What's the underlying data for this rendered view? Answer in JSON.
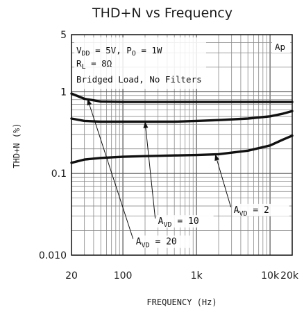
{
  "chart_data": {
    "type": "line",
    "title": "THD+N vs Frequency",
    "xlabel": "FREQUENCY (Hz)",
    "ylabel": "THD+N (%)",
    "x_scale": "log",
    "y_scale": "log",
    "xlim": [
      20,
      20000
    ],
    "ylim": [
      0.01,
      5
    ],
    "x_ticks": [
      {
        "value": 20,
        "label": "20"
      },
      {
        "value": 100,
        "label": "100"
      },
      {
        "value": 1000,
        "label": "1k"
      },
      {
        "value": 10000,
        "label": "10k"
      },
      {
        "value": 20000,
        "label": "20k"
      }
    ],
    "y_ticks": [
      {
        "value": 0.01,
        "label": "0.010"
      },
      {
        "value": 0.1,
        "label": "0.1"
      },
      {
        "value": 1,
        "label": "1"
      },
      {
        "value": 5,
        "label": "5"
      }
    ],
    "grid": true,
    "conditions": {
      "line1": "V_DD = 5V, P_O = 1W",
      "line2": "R_L = 8Ω",
      "line3": "Bridged Load, No Filters"
    },
    "logo": "Ap",
    "series": [
      {
        "name": "AVD = 20",
        "x": [
          20,
          30,
          50,
          100,
          200,
          500,
          1000,
          2000,
          5000,
          10000,
          20000
        ],
        "y": [
          0.95,
          0.82,
          0.76,
          0.75,
          0.75,
          0.75,
          0.75,
          0.75,
          0.75,
          0.75,
          0.75
        ]
      },
      {
        "name": "AVD = 10",
        "x": [
          20,
          30,
          50,
          100,
          200,
          500,
          1000,
          2000,
          5000,
          10000,
          15000,
          20000
        ],
        "y": [
          0.47,
          0.44,
          0.43,
          0.43,
          0.43,
          0.43,
          0.44,
          0.45,
          0.47,
          0.5,
          0.54,
          0.58
        ]
      },
      {
        "name": "AVD = 2",
        "x": [
          20,
          30,
          50,
          100,
          200,
          500,
          1000,
          2000,
          5000,
          10000,
          15000,
          20000
        ],
        "y": [
          0.135,
          0.148,
          0.155,
          0.16,
          0.163,
          0.166,
          0.168,
          0.172,
          0.19,
          0.22,
          0.26,
          0.29
        ]
      }
    ],
    "annotations": [
      {
        "series": "AVD = 20",
        "text_main": "A",
        "text_sub": "VD",
        "text_tail": " = 20",
        "label_x": 150,
        "label_y": 0.0135,
        "arrow_x": 33,
        "arrow_y": 0.82
      },
      {
        "series": "AVD = 10",
        "text_main": "A",
        "text_sub": "VD",
        "text_tail": " = 10",
        "label_x": 300,
        "label_y": 0.024,
        "arrow_x": 200,
        "arrow_y": 0.43
      },
      {
        "series": "AVD = 2",
        "text_main": "A",
        "text_sub": "VD",
        "text_tail": " = 2",
        "label_x": 3200,
        "label_y": 0.033,
        "arrow_x": 1800,
        "arrow_y": 0.172
      }
    ]
  }
}
